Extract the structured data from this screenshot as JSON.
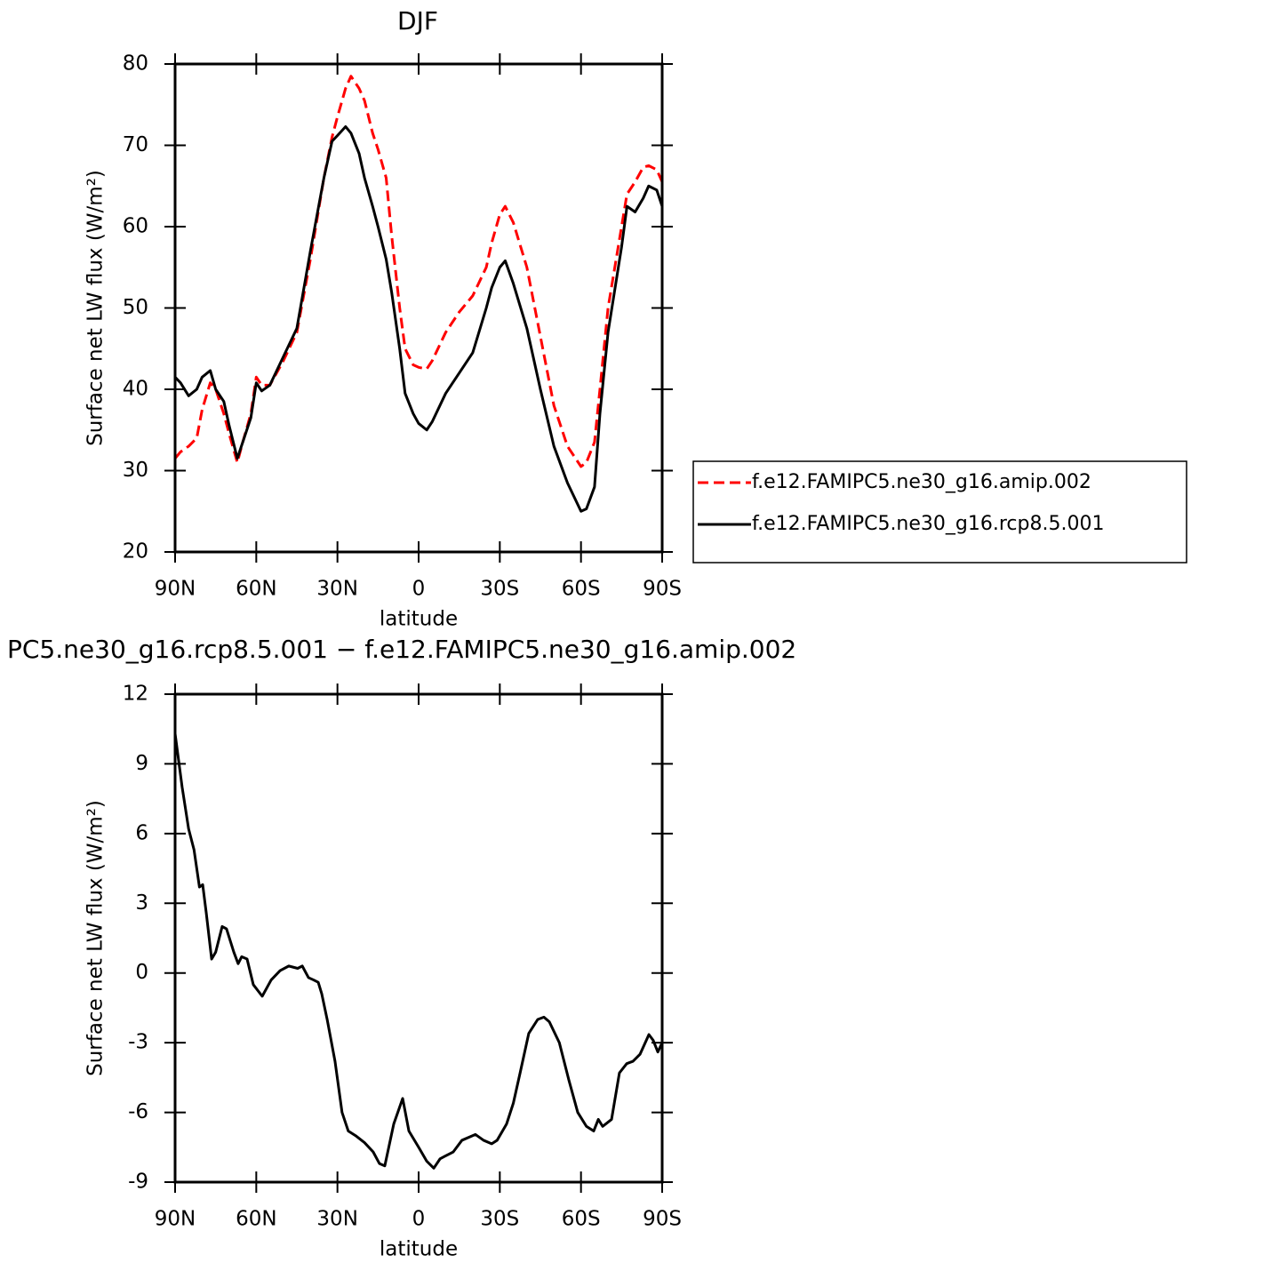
{
  "chart_data": [
    {
      "type": "line",
      "title": "DJF",
      "xlabel": "latitude",
      "ylabel": "Surface net LW flux (W/m²)",
      "x": [
        90,
        88,
        85,
        82,
        80,
        77,
        75,
        72,
        70,
        67,
        65,
        62,
        60,
        58,
        55,
        50,
        45,
        40,
        35,
        32,
        30,
        27,
        25,
        22,
        20,
        17,
        15,
        12,
        10,
        7,
        5,
        2,
        0,
        -3,
        -5,
        -10,
        -15,
        -20,
        -25,
        -27,
        -30,
        -32,
        -35,
        -40,
        -45,
        -50,
        -55,
        -60,
        -62,
        -65,
        -67,
        -70,
        -75,
        -77,
        -80,
        -83,
        -85,
        -88,
        -90
      ],
      "series": [
        {
          "name": "f.e12.FAMIPC5.ne30_g16.amip.002",
          "color": "#ff0000",
          "line_style": "dashed",
          "values": [
            31.5,
            32.3,
            33,
            34,
            37.5,
            40.8,
            40,
            37,
            34.5,
            31,
            33.5,
            37,
            41.5,
            40.5,
            40.5,
            43.5,
            47,
            56,
            66,
            71,
            73.5,
            77,
            78.5,
            77,
            75.5,
            71.5,
            69.5,
            66,
            59,
            50,
            45,
            43,
            42.7,
            42.5,
            43.5,
            47,
            49.5,
            51.5,
            55,
            58,
            61.5,
            62.5,
            60.5,
            55,
            46.5,
            38,
            33,
            30.5,
            31,
            33.5,
            40,
            50,
            60,
            64,
            65.5,
            67.3,
            67.5,
            67,
            65.5
          ]
        },
        {
          "name": "f.e12.FAMIPC5.ne30_g16.rcp8.5.001",
          "color": "#000000",
          "line_style": "solid",
          "values": [
            41.5,
            40.8,
            39.2,
            40,
            41.5,
            42.3,
            40,
            38.5,
            35.5,
            31.5,
            33.5,
            36.5,
            40.8,
            39.8,
            40.5,
            44,
            47.5,
            57,
            66,
            70.5,
            71.2,
            72.3,
            71.5,
            69,
            66,
            62.5,
            60,
            56,
            52,
            45,
            39.5,
            37,
            35.8,
            35,
            36,
            39.5,
            42,
            44.5,
            50,
            52.5,
            55,
            55.8,
            53,
            47.5,
            40,
            33,
            28.5,
            25,
            25.3,
            28,
            37,
            47,
            57.5,
            62.5,
            61.8,
            63.5,
            65,
            64.5,
            62.5
          ]
        }
      ],
      "xlim": [
        90,
        -90
      ],
      "xticks": [
        {
          "value": 90,
          "label": "90N"
        },
        {
          "value": 60,
          "label": "60N"
        },
        {
          "value": 30,
          "label": "30N"
        },
        0,
        {
          "value": -30,
          "label": "30S"
        },
        {
          "value": -60,
          "label": "60S"
        },
        {
          "value": -90,
          "label": "90S"
        }
      ],
      "ylim": [
        20,
        80
      ],
      "yticks": [
        20,
        30,
        40,
        50,
        60,
        70,
        80
      ],
      "legend": "right"
    },
    {
      "type": "line",
      "title": "PC5.ne30_g16.rcp8.5.001 − f.e12.FAMIPC5.ne30_g16.amip.002",
      "xlabel": "latitude",
      "ylabel": "Surface net LW flux (W/m²)",
      "x": [
        90,
        87.4,
        85,
        83,
        81,
        79.8,
        78.5,
        76.5,
        75,
        72.6,
        71,
        68.3,
        66.7,
        65.4,
        63.4,
        61.1,
        57.8,
        54.5,
        51.2,
        48,
        44.7,
        43,
        40.7,
        38.8,
        37.1,
        35.8,
        33.8,
        30.9,
        28.3,
        26,
        23.3,
        20,
        16.8,
        14.5,
        12.5,
        9.2,
        5.9,
        3.6,
        0,
        -3,
        -5.6,
        -7.9,
        -9.5,
        -12.8,
        -16,
        -21,
        -24,
        -27,
        -29,
        -32.5,
        -35,
        -37.5,
        -40.7,
        -44,
        -46.3,
        -48.3,
        -52,
        -55.5,
        -58.8,
        -62,
        -64.7,
        -66.4,
        -68,
        -71.3,
        -74.2,
        -76.9,
        -79.2,
        -81.8,
        -85.1,
        -86.7,
        -88.4,
        -90
      ],
      "values": [
        10.3,
        8,
        6.2,
        5.3,
        3.7,
        3.8,
        2.6,
        0.6,
        0.9,
        2,
        1.9,
        0.9,
        0.4,
        0.7,
        0.6,
        -0.5,
        -1,
        -0.3,
        0.1,
        0.3,
        0.2,
        0.3,
        -0.2,
        -0.3,
        -0.4,
        -0.9,
        -2,
        -3.8,
        -6,
        -6.8,
        -7,
        -7.3,
        -7.7,
        -8.2,
        -8.3,
        -6.5,
        -5.4,
        -6.8,
        -7.5,
        -8.1,
        -8.4,
        -8,
        -7.9,
        -7.7,
        -7.2,
        -6.95,
        -7.2,
        -7.35,
        -7.2,
        -6.5,
        -5.6,
        -4.3,
        -2.6,
        -2,
        -1.9,
        -2.1,
        -3,
        -4.6,
        -6,
        -6.6,
        -6.8,
        -6.3,
        -6.6,
        -6.3,
        -4.3,
        -3.9,
        -3.8,
        -3.5,
        -2.65,
        -2.9,
        -3.4,
        -3
      ],
      "color": "#000000",
      "xlim": [
        90,
        -90
      ],
      "xticks": [
        {
          "value": 90,
          "label": "90N"
        },
        {
          "value": 60,
          "label": "60N"
        },
        {
          "value": 30,
          "label": "30N"
        },
        0,
        {
          "value": -30,
          "label": "30S"
        },
        {
          "value": -60,
          "label": "60S"
        },
        {
          "value": -90,
          "label": "90S"
        }
      ],
      "ylim": [
        -9,
        12
      ],
      "yticks": [
        -9,
        -6,
        -3,
        0,
        3,
        6,
        9,
        12
      ]
    }
  ]
}
